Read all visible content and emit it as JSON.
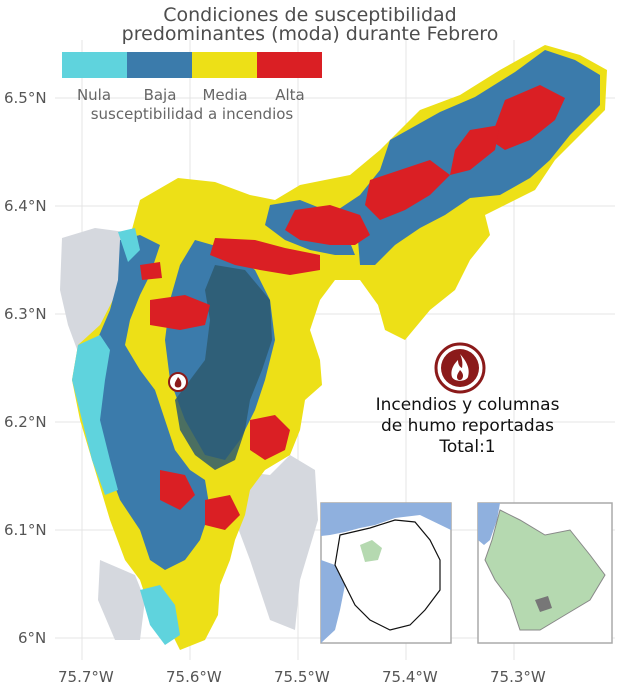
{
  "title": {
    "line1": "Condiciones de susceptibilidad",
    "line2": "predominantes (moda) durante Febrero"
  },
  "legend": {
    "title": "susceptibilidad a incendios",
    "items": [
      {
        "label": "Nula",
        "color": "#5fd3dd"
      },
      {
        "label": "Baja",
        "color": "#3b7bab"
      },
      {
        "label": "Media",
        "color": "#ede017"
      },
      {
        "label": "Alta",
        "color": "#da1f24"
      }
    ]
  },
  "axes": {
    "y_ticks": [
      "6.5°N",
      "6.4°N",
      "6.3°N",
      "6.2°N",
      "6.1°N",
      "6°N"
    ],
    "x_ticks": [
      "75.7°W",
      "75.6°W",
      "75.5°W",
      "75.4°W",
      "75.3°W"
    ]
  },
  "annotation": {
    "line1": "Incendios y columnas",
    "line2": "de humo reportadas",
    "line3": "Total:1",
    "icon": "fire-icon"
  },
  "colors": {
    "outside_region": "#d5d8de",
    "grid": "#e2e2e2",
    "sea": "#8fb0de",
    "inset_highlight": "#b5d9b0",
    "fire_circle": "#8b1a1a"
  }
}
